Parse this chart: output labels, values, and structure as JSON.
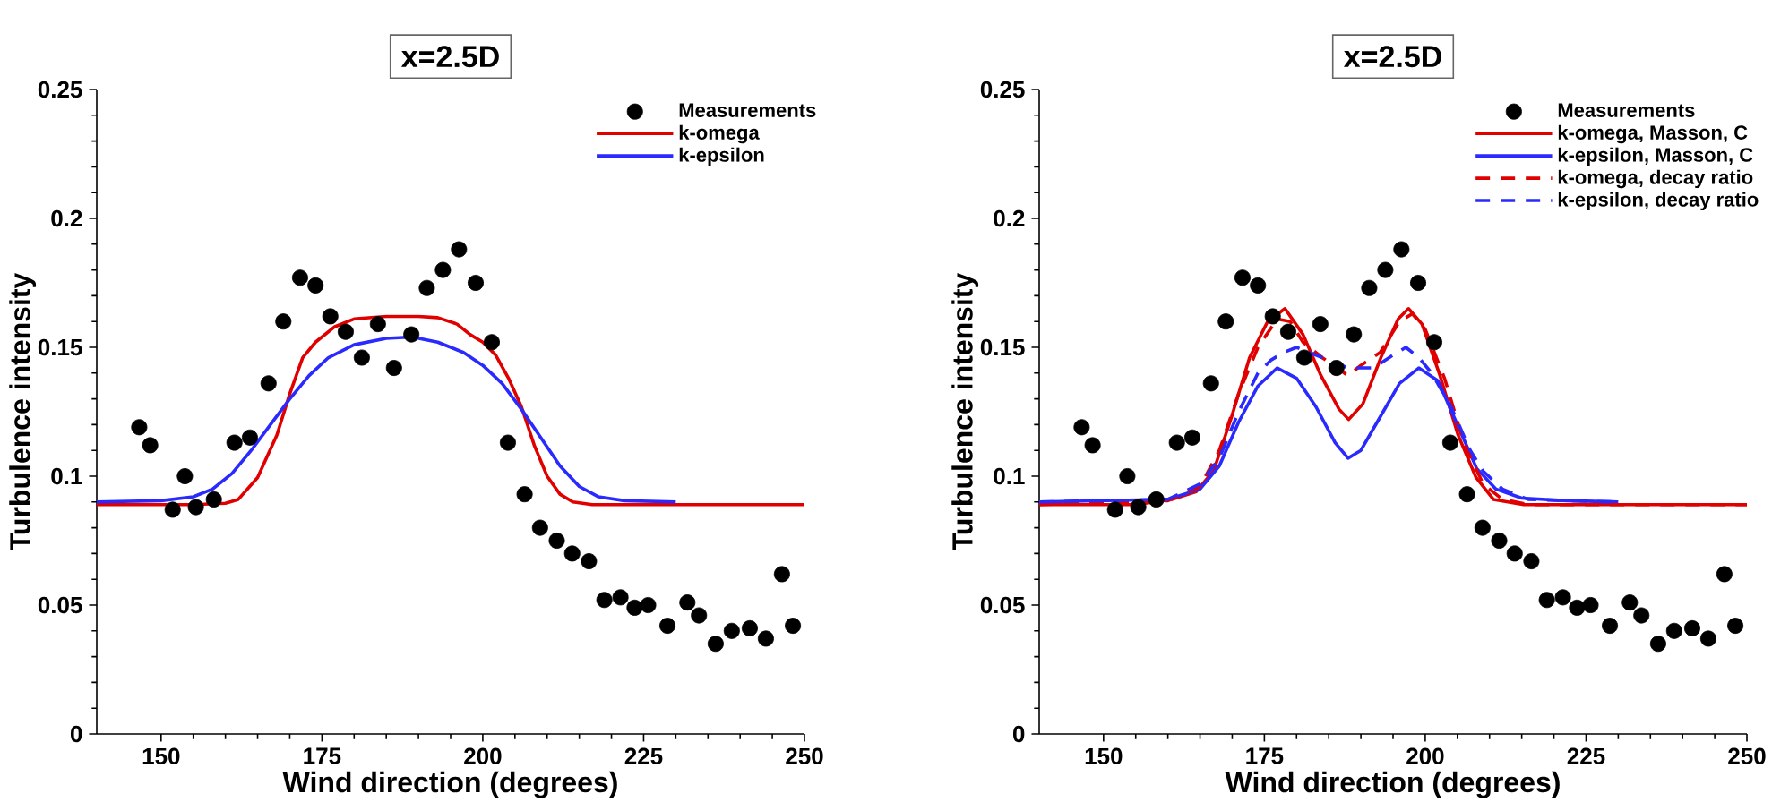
{
  "chart_data": [
    {
      "type": "line",
      "title": "x=2.5D",
      "xlabel": "Wind direction (degrees)",
      "ylabel": "Turbulence intensity",
      "xlim": [
        140,
        250
      ],
      "ylim": [
        0,
        0.25
      ],
      "xticks": [
        150,
        175,
        200,
        225,
        250
      ],
      "yticks": [
        0,
        0.05,
        0.1,
        0.15,
        0.2,
        0.25
      ],
      "legend": "top right",
      "series": [
        {
          "name": "Measurements",
          "type": "scatter",
          "marker": "circle",
          "color": "#000000",
          "x": [
            146.6,
            148.3,
            151.8,
            153.7,
            155.4,
            158.2,
            161.4,
            163.8,
            166.7,
            169.0,
            171.6,
            174.0,
            176.3,
            178.7,
            181.2,
            183.7,
            186.2,
            188.9,
            191.3,
            193.8,
            196.3,
            198.9,
            201.4,
            203.9,
            206.5,
            208.9,
            211.5,
            213.9,
            216.5,
            218.9,
            221.4,
            223.6,
            225.7,
            228.7,
            231.8,
            233.6,
            236.2,
            238.7,
            241.5,
            244.0,
            246.5,
            248.2
          ],
          "values": [
            0.119,
            0.112,
            0.087,
            0.1,
            0.088,
            0.091,
            0.113,
            0.115,
            0.136,
            0.16,
            0.177,
            0.174,
            0.162,
            0.156,
            0.146,
            0.159,
            0.142,
            0.155,
            0.173,
            0.18,
            0.188,
            0.175,
            0.152,
            0.113,
            0.093,
            0.08,
            0.075,
            0.07,
            0.067,
            0.052,
            0.053,
            0.049,
            0.05,
            0.042,
            0.051,
            0.046,
            0.035,
            0.04,
            0.041,
            0.037,
            0.062,
            0.042
          ]
        },
        {
          "name": "k-omega",
          "line_style": "solid",
          "color": "#e00000",
          "x": [
            140,
            155,
            160,
            162,
            165,
            168,
            170,
            172,
            174,
            177,
            180,
            185,
            190,
            193,
            196,
            198,
            200,
            202,
            204,
            206,
            208,
            210,
            212,
            214,
            217,
            250
          ],
          "values": [
            0.089,
            0.089,
            0.0895,
            0.091,
            0.0995,
            0.116,
            0.132,
            0.146,
            0.152,
            0.158,
            0.161,
            0.162,
            0.162,
            0.1615,
            0.159,
            0.155,
            0.152,
            0.147,
            0.138,
            0.127,
            0.112,
            0.1,
            0.093,
            0.09,
            0.089,
            0.089
          ]
        },
        {
          "name": "k-epsilon",
          "line_style": "solid",
          "color": "#2a2aff",
          "x": [
            140,
            150,
            155,
            158,
            161,
            164,
            167,
            170,
            173,
            176,
            180,
            185,
            189,
            193,
            197,
            200,
            203,
            206,
            209,
            212,
            215,
            218,
            222,
            230
          ],
          "values": [
            0.09,
            0.0905,
            0.092,
            0.095,
            0.101,
            0.11,
            0.12,
            0.13,
            0.139,
            0.146,
            0.151,
            0.1535,
            0.154,
            0.152,
            0.148,
            0.143,
            0.136,
            0.126,
            0.115,
            0.104,
            0.096,
            0.092,
            0.0905,
            0.09
          ]
        }
      ]
    },
    {
      "type": "line",
      "title": "x=2.5D",
      "xlabel": "Wind direction (degrees)",
      "ylabel": "Turbulence intensity",
      "xlim": [
        140,
        250
      ],
      "ylim": [
        0,
        0.25
      ],
      "xticks": [
        150,
        175,
        200,
        225,
        250
      ],
      "yticks": [
        0,
        0.05,
        0.1,
        0.15,
        0.2,
        0.25
      ],
      "legend": "top right",
      "series": [
        {
          "name": "Measurements",
          "type": "scatter",
          "marker": "circle",
          "color": "#000000",
          "x": [
            146.6,
            148.3,
            151.8,
            153.7,
            155.4,
            158.2,
            161.4,
            163.8,
            166.7,
            169.0,
            171.6,
            174.0,
            176.3,
            178.7,
            181.2,
            183.7,
            186.2,
            188.9,
            191.3,
            193.8,
            196.3,
            198.9,
            201.4,
            203.9,
            206.5,
            208.9,
            211.5,
            213.9,
            216.5,
            218.9,
            221.4,
            223.6,
            225.7,
            228.7,
            231.8,
            233.6,
            236.2,
            238.7,
            241.5,
            244.0,
            246.5,
            248.2
          ],
          "values": [
            0.119,
            0.112,
            0.087,
            0.1,
            0.088,
            0.091,
            0.113,
            0.115,
            0.136,
            0.16,
            0.177,
            0.174,
            0.162,
            0.156,
            0.146,
            0.159,
            0.142,
            0.155,
            0.173,
            0.18,
            0.188,
            0.175,
            0.152,
            0.113,
            0.093,
            0.08,
            0.075,
            0.07,
            0.067,
            0.052,
            0.053,
            0.049,
            0.05,
            0.042,
            0.051,
            0.046,
            0.035,
            0.04,
            0.041,
            0.037,
            0.062,
            0.042
          ]
        },
        {
          "name": "k-omega, Masson, C",
          "line_style": "solid",
          "color": "#e00000",
          "x": [
            140,
            155,
            160.6,
            164.4,
            167.1,
            169.9,
            172.7,
            175.5,
            178.2,
            181.0,
            183.8,
            186.6,
            188.1,
            190.3,
            193.1,
            195.8,
            197.4,
            199.5,
            202.3,
            205.1,
            207.9,
            210.6,
            215.3,
            250
          ],
          "values": [
            0.089,
            0.089,
            0.091,
            0.094,
            0.102,
            0.123,
            0.146,
            0.16,
            0.165,
            0.155,
            0.139,
            0.126,
            0.122,
            0.128,
            0.146,
            0.161,
            0.165,
            0.159,
            0.139,
            0.116,
            0.0995,
            0.091,
            0.089,
            0.089
          ]
        },
        {
          "name": "k-epsilon, Masson, C",
          "line_style": "solid",
          "color": "#2a2aff",
          "x": [
            140,
            160,
            165,
            168,
            171,
            174,
            177,
            180,
            183,
            186,
            188,
            190,
            193,
            196,
            199,
            202,
            205,
            208,
            211,
            215,
            222,
            230
          ],
          "values": [
            0.09,
            0.091,
            0.095,
            0.104,
            0.121,
            0.135,
            0.142,
            0.138,
            0.127,
            0.113,
            0.107,
            0.11,
            0.123,
            0.136,
            0.142,
            0.137,
            0.12,
            0.103,
            0.095,
            0.0915,
            0.0905,
            0.09
          ]
        },
        {
          "name": "k-omega, decay ratio",
          "line_style": "dashed",
          "color": "#e00000",
          "x": [
            140,
            160,
            165,
            168,
            171,
            174,
            177,
            179,
            181,
            184,
            188,
            190,
            193,
            196,
            198,
            200,
            203,
            206,
            209,
            212,
            216,
            250
          ],
          "values": [
            0.089,
            0.0905,
            0.096,
            0.11,
            0.132,
            0.15,
            0.161,
            0.16,
            0.152,
            0.146,
            0.139,
            0.143,
            0.148,
            0.16,
            0.163,
            0.157,
            0.138,
            0.113,
            0.097,
            0.091,
            0.089,
            0.089
          ]
        },
        {
          "name": "k-epsilon, decay ratio",
          "line_style": "dashed",
          "color": "#2a2aff",
          "x": [
            140,
            160,
            165,
            168,
            171,
            174,
            176,
            178,
            180,
            184,
            188,
            192,
            195,
            197,
            199,
            201,
            204,
            207,
            209,
            212,
            216,
            222,
            230
          ],
          "values": [
            0.09,
            0.091,
            0.097,
            0.107,
            0.125,
            0.14,
            0.145,
            0.148,
            0.15,
            0.146,
            0.142,
            0.142,
            0.147,
            0.15,
            0.146,
            0.14,
            0.127,
            0.11,
            0.102,
            0.095,
            0.091,
            0.0905,
            0.09
          ]
        }
      ]
    }
  ]
}
